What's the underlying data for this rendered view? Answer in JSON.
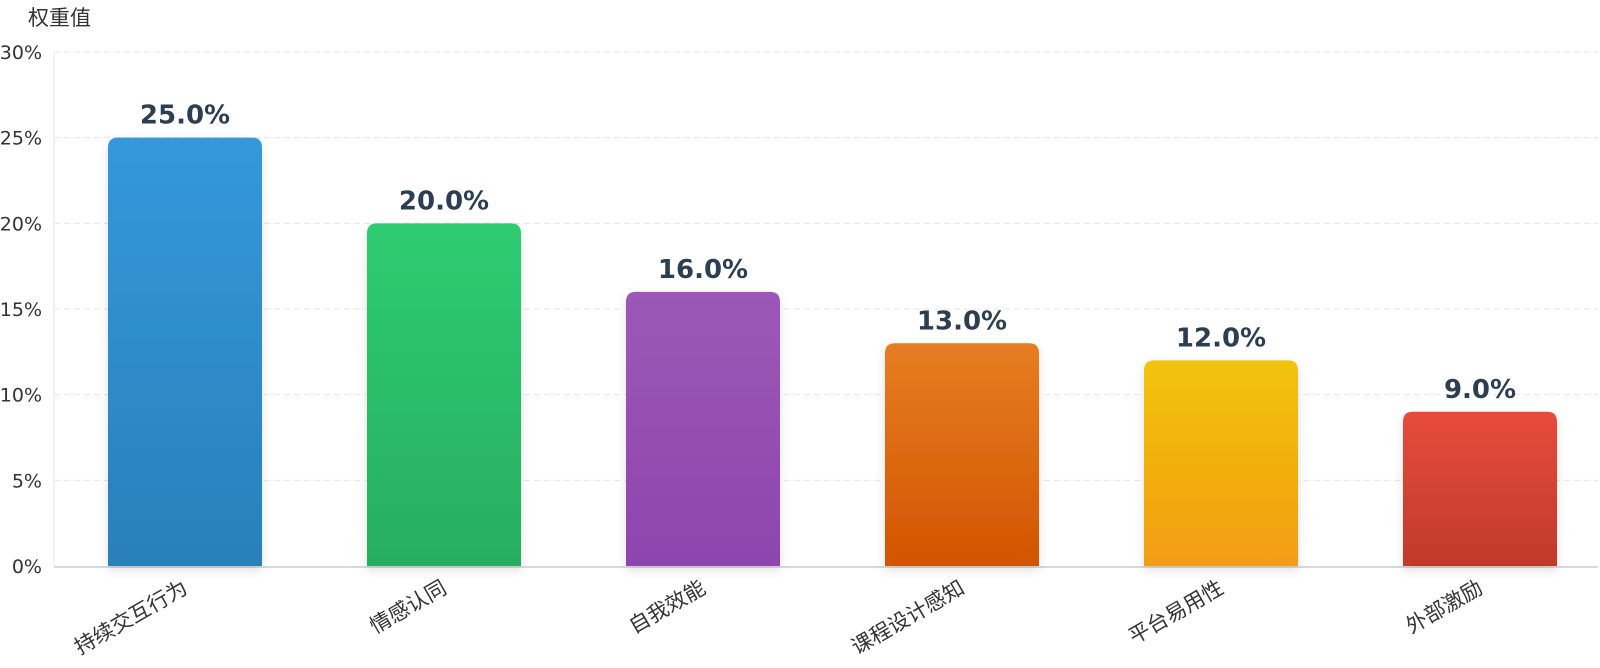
{
  "chart_data": {
    "type": "bar",
    "ylabel": "权重值",
    "xlabel": "",
    "title": "",
    "ylim": [
      0,
      30
    ],
    "yticks": [
      0,
      5,
      10,
      15,
      20,
      25,
      30
    ],
    "ytick_labels": [
      "0%",
      "5%",
      "10%",
      "15%",
      "20%",
      "25%",
      "30%"
    ],
    "categories": [
      "持续交互行为",
      "情感认同",
      "自我效能",
      "课程设计感知",
      "平台易用性",
      "外部激励"
    ],
    "values": [
      25.0,
      20.0,
      16.0,
      13.0,
      12.0,
      9.0
    ],
    "value_labels": [
      "25.0%",
      "20.0%",
      "16.0%",
      "13.0%",
      "12.0%",
      "9.0%"
    ],
    "colors": [
      [
        "#3498db",
        "#2980b9"
      ],
      [
        "#2ecc71",
        "#27ae60"
      ],
      [
        "#9b59b6",
        "#8e44ad"
      ],
      [
        "#e67e22",
        "#d35400"
      ],
      [
        "#f1c40f",
        "#f39c12"
      ],
      [
        "#e74c3c",
        "#c0392b"
      ]
    ],
    "grid": true,
    "legend": false
  }
}
